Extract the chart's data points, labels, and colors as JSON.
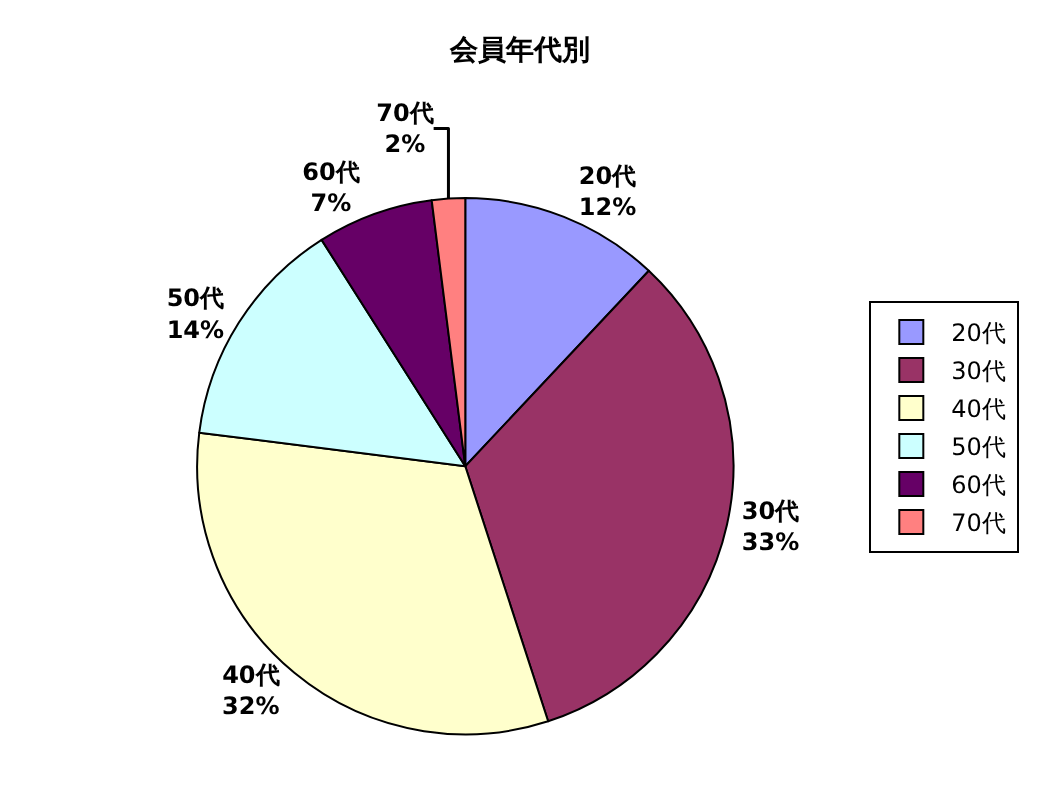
{
  "chart_data": {
    "type": "pie",
    "title": "会員年代別",
    "categories": [
      "20代",
      "30代",
      "40代",
      "50代",
      "60代",
      "70代"
    ],
    "values": [
      12,
      33,
      32,
      14,
      7,
      2
    ],
    "value_labels": [
      "12%",
      "33%",
      "32%",
      "14%",
      "7%",
      "2%"
    ],
    "colors": [
      "#9999ff",
      "#993366",
      "#ffffcc",
      "#ccffff",
      "#660066",
      "#ff8080"
    ],
    "legend": "right"
  }
}
